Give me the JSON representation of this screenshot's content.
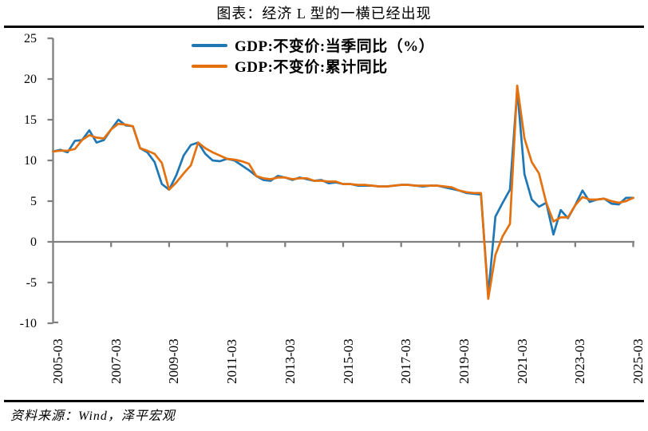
{
  "page": {
    "title": "图表：经济 L 型的一横已经出现",
    "source_note": "资料来源：Wind，泽平宏观"
  },
  "chart_data": {
    "type": "line",
    "title": "图表：经济 L 型的一横已经出现",
    "xlabel": "",
    "ylabel": "",
    "ylim": [
      -10,
      25
    ],
    "y_ticks": [
      25,
      20,
      15,
      10,
      5,
      0,
      -5,
      -10
    ],
    "x_tick_labels": [
      "2005-03",
      "2007-03",
      "2009-03",
      "2011-03",
      "2013-03",
      "2015-03",
      "2017-03",
      "2019-03",
      "2021-03",
      "2023-03",
      "2025-03"
    ],
    "x_start": "2005-03",
    "x_end": "2025-03",
    "frequency": "quarterly",
    "grid": false,
    "legend_position": "top-center",
    "axis_color": "#808080",
    "axis_crosses_at_zero": true,
    "series": [
      {
        "name": "GDP:不变价:当季同比（%）",
        "color": "#1f77b4",
        "values": [
          11.1,
          11.3,
          11.0,
          12.4,
          12.5,
          13.7,
          12.2,
          12.5,
          13.8,
          15.0,
          14.3,
          14.2,
          11.5,
          11.0,
          9.8,
          7.1,
          6.4,
          8.2,
          10.6,
          11.9,
          12.2,
          10.8,
          10.0,
          9.9,
          10.2,
          10.0,
          9.4,
          8.8,
          8.1,
          7.6,
          7.5,
          8.1,
          7.9,
          7.6,
          7.9,
          7.7,
          7.5,
          7.6,
          7.2,
          7.3,
          7.1,
          7.1,
          6.9,
          6.9,
          6.9,
          6.8,
          6.8,
          6.9,
          7.0,
          7.0,
          6.9,
          6.8,
          6.9,
          6.9,
          6.7,
          6.5,
          6.3,
          6.0,
          5.9,
          5.8,
          -6.5,
          3.1,
          4.8,
          6.4,
          18.7,
          8.3,
          5.2,
          4.3,
          4.8,
          0.9,
          3.9,
          2.9,
          4.5,
          6.3,
          4.9,
          5.2,
          5.3,
          4.7,
          4.6,
          5.4,
          5.4
        ]
      },
      {
        "name": "GDP:不变价:累计同比",
        "color": "#e4700e",
        "values": [
          11.1,
          11.2,
          11.2,
          11.4,
          12.5,
          13.1,
          12.8,
          12.7,
          13.8,
          14.5,
          14.4,
          14.2,
          11.5,
          11.2,
          10.8,
          9.7,
          6.4,
          7.3,
          8.4,
          9.4,
          12.2,
          11.5,
          11.0,
          10.6,
          10.2,
          10.1,
          9.9,
          9.6,
          8.1,
          7.8,
          7.7,
          7.9,
          7.9,
          7.7,
          7.8,
          7.8,
          7.5,
          7.5,
          7.4,
          7.4,
          7.1,
          7.1,
          7.0,
          7.0,
          6.9,
          6.8,
          6.8,
          6.9,
          7.0,
          7.0,
          6.9,
          6.9,
          6.9,
          6.9,
          6.8,
          6.7,
          6.3,
          6.1,
          6.0,
          6.0,
          -7.0,
          -1.6,
          0.7,
          2.2,
          19.2,
          12.7,
          9.8,
          8.4,
          4.8,
          2.5,
          3.0,
          3.0,
          4.5,
          5.5,
          5.2,
          5.2,
          5.3,
          5.0,
          4.8,
          5.0,
          5.4
        ]
      }
    ]
  }
}
